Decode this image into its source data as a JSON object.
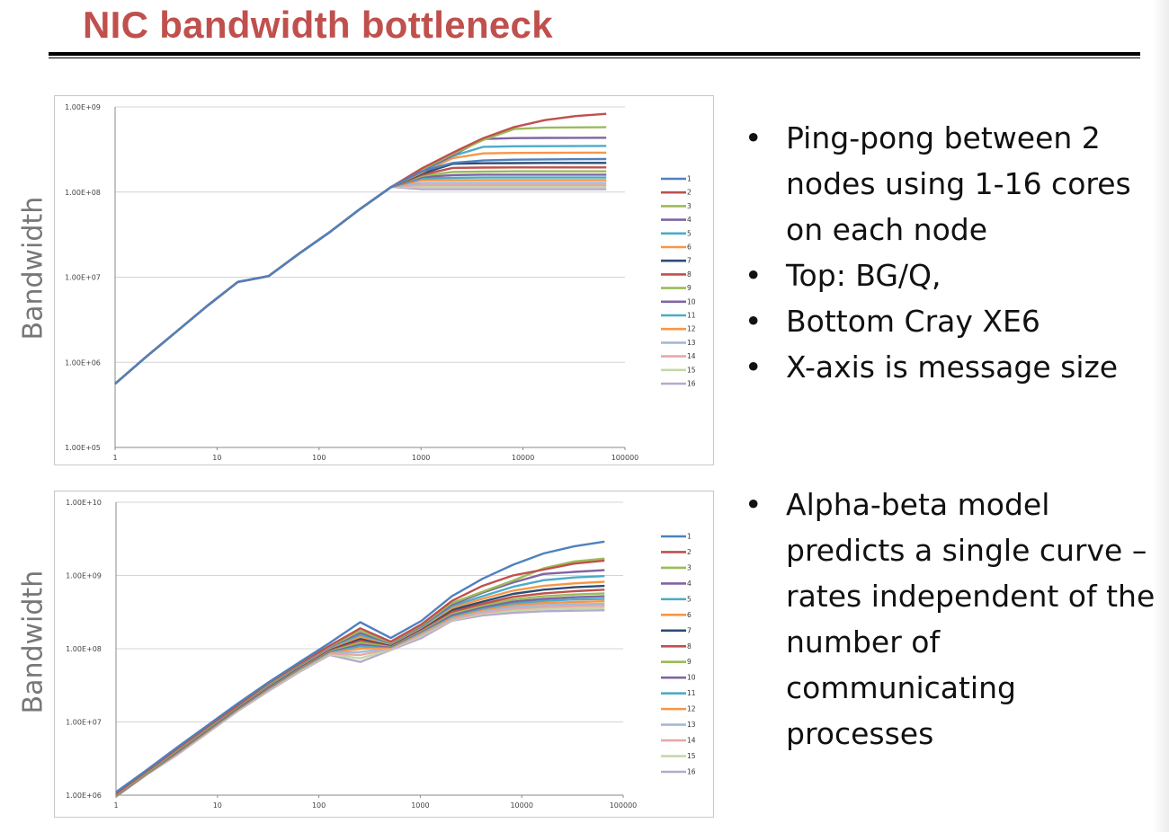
{
  "slide": {
    "title": "NIC bandwidth bottleneck",
    "bullets_top": [
      "Ping-pong between 2 nodes using 1-16 cores on each node",
      "Top: BG/Q,",
      "Bottom Cray XE6",
      "X-axis is message size"
    ],
    "bullets_bottom": [
      "Alpha-beta model predicts a single curve – rates independent of the number of communicating processes"
    ]
  },
  "chart_data": [
    {
      "type": "line",
      "title": "",
      "xlabel": "",
      "ylabel": "Bandwidth",
      "xscale": "log",
      "yscale": "log",
      "xlim": [
        1,
        100000
      ],
      "ylim": [
        100000,
        1000000000
      ],
      "xticks": [
        "1",
        "10",
        "100",
        "1000",
        "10000",
        "100000"
      ],
      "yticks": [
        "1.00E+05",
        "1.00E+06",
        "1.00E+07",
        "1.00E+08",
        "1.00E+09"
      ],
      "grid": true,
      "legend": "right",
      "x": [
        1,
        2,
        4,
        8,
        16,
        32,
        64,
        128,
        256,
        512,
        1024,
        2048,
        4096,
        8192,
        16384,
        32768,
        65536
      ],
      "shared_prefix": [
        560000,
        1150000,
        2300000,
        4600000,
        8800000,
        10300000,
        19000000,
        34000000,
        64000000,
        115000000
      ],
      "series": [
        {
          "name": "1",
          "color": "#4f81bd",
          "tail": [
            175000000,
            220000000,
            235000000,
            240000000,
            242000000,
            243000000,
            244000000
          ]
        },
        {
          "name": "2",
          "color": "#c0504d",
          "tail": [
            190000000,
            290000000,
            430000000,
            580000000,
            700000000,
            780000000,
            830000000
          ]
        },
        {
          "name": "3",
          "color": "#9bbb59",
          "tail": [
            185000000,
            280000000,
            410000000,
            550000000,
            570000000,
            575000000,
            578000000
          ]
        },
        {
          "name": "4",
          "color": "#8064a2",
          "tail": [
            180000000,
            270000000,
            420000000,
            430000000,
            432000000,
            433000000,
            434000000
          ]
        },
        {
          "name": "5",
          "color": "#4bacc6",
          "tail": [
            175000000,
            265000000,
            340000000,
            345000000,
            346000000,
            347000000,
            348000000
          ]
        },
        {
          "name": "6",
          "color": "#f79646",
          "tail": [
            170000000,
            250000000,
            285000000,
            288000000,
            289000000,
            290000000,
            290000000
          ]
        },
        {
          "name": "7",
          "color": "#2c4d75",
          "tail": [
            165000000,
            215000000,
            218000000,
            219000000,
            220000000,
            220000000,
            220000000
          ]
        },
        {
          "name": "8",
          "color": "#c0504d",
          "tail": [
            160000000,
            192000000,
            194000000,
            195000000,
            195000000,
            195000000,
            195000000
          ]
        },
        {
          "name": "9",
          "color": "#9bbb59",
          "tail": [
            155000000,
            172000000,
            174000000,
            175000000,
            175000000,
            175000000,
            175000000
          ]
        },
        {
          "name": "10",
          "color": "#8064a2",
          "tail": [
            150000000,
            158000000,
            160000000,
            160000000,
            160000000,
            160000000,
            160000000
          ]
        },
        {
          "name": "11",
          "color": "#4bacc6",
          "tail": [
            145000000,
            147000000,
            148000000,
            148000000,
            148000000,
            148000000,
            148000000
          ]
        },
        {
          "name": "12",
          "color": "#f79646",
          "tail": [
            138000000,
            138000000,
            138000000,
            138000000,
            138000000,
            138000000,
            138000000
          ]
        },
        {
          "name": "13",
          "color": "#a5b9d6",
          "tail": [
            128000000,
            128000000,
            128000000,
            128000000,
            128000000,
            128000000,
            128000000
          ]
        },
        {
          "name": "14",
          "color": "#e6a9a8",
          "tail": [
            121000000,
            121000000,
            121000000,
            121000000,
            121000000,
            121000000,
            121000000
          ]
        },
        {
          "name": "15",
          "color": "#c5d9a8",
          "tail": [
            115000000,
            115000000,
            115000000,
            115000000,
            115000000,
            115000000,
            115000000
          ]
        },
        {
          "name": "16",
          "color": "#b6a9cc",
          "tail": [
            108000000,
            108000000,
            108000000,
            108000000,
            108000000,
            108000000,
            108000000
          ]
        }
      ]
    },
    {
      "type": "line",
      "title": "",
      "xlabel": "",
      "ylabel": "Bandwidth",
      "xscale": "log",
      "yscale": "log",
      "xlim": [
        1,
        100000
      ],
      "ylim": [
        1000000,
        10000000000
      ],
      "xticks": [
        "1",
        "10",
        "100",
        "1000",
        "10000",
        "100000"
      ],
      "yticks": [
        "1.00E+06",
        "1.00E+07",
        "1.00E+08",
        "1.00E+09",
        "1.00E+10"
      ],
      "grid": true,
      "legend": "right",
      "x": [
        1,
        2,
        4,
        8,
        16,
        32,
        64,
        128,
        256,
        512,
        1024,
        2048,
        4096,
        8192,
        16384,
        32768,
        65536
      ],
      "series": [
        {
          "name": "1",
          "color": "#4f81bd",
          "values": [
            1100000,
            2200000,
            4500000,
            9000000,
            18000000,
            35000000,
            65000000,
            120000000,
            230000000,
            140000000,
            240000000,
            520000000,
            900000000,
            1400000000,
            2000000000,
            2500000000,
            2900000000
          ]
        },
        {
          "name": "2",
          "color": "#c0504d",
          "values": [
            1050000,
            2100000,
            4300000,
            8600000,
            17000000,
            34000000,
            62000000,
            110000000,
            190000000,
            125000000,
            215000000,
            450000000,
            720000000,
            1000000000,
            1200000000,
            1450000000,
            1600000000
          ]
        },
        {
          "name": "3",
          "color": "#9bbb59",
          "values": [
            1030000,
            2050000,
            4200000,
            8400000,
            16800000,
            33000000,
            61000000,
            108000000,
            175000000,
            122000000,
            210000000,
            420000000,
            600000000,
            850000000,
            1250000000,
            1550000000,
            1700000000
          ]
        },
        {
          "name": "4",
          "color": "#8064a2",
          "values": [
            1020000,
            2030000,
            4150000,
            8300000,
            16600000,
            32500000,
            60000000,
            106000000,
            165000000,
            120000000,
            205000000,
            400000000,
            580000000,
            800000000,
            1050000000,
            1120000000,
            1180000000
          ]
        },
        {
          "name": "5",
          "color": "#4bacc6",
          "values": [
            1010000,
            2010000,
            4100000,
            8200000,
            16400000,
            32000000,
            59000000,
            104000000,
            155000000,
            118000000,
            200000000,
            380000000,
            520000000,
            700000000,
            860000000,
            940000000,
            980000000
          ]
        },
        {
          "name": "6",
          "color": "#f79646",
          "values": [
            1000000,
            2000000,
            4050000,
            8100000,
            16200000,
            31500000,
            58000000,
            102000000,
            145000000,
            116000000,
            195000000,
            360000000,
            480000000,
            620000000,
            720000000,
            780000000,
            820000000
          ]
        },
        {
          "name": "7",
          "color": "#2c4d75",
          "values": [
            995000,
            1990000,
            4000000,
            8000000,
            16000000,
            31000000,
            57000000,
            100000000,
            138000000,
            114000000,
            190000000,
            340000000,
            440000000,
            560000000,
            640000000,
            690000000,
            720000000
          ]
        },
        {
          "name": "8",
          "color": "#c0504d",
          "values": [
            990000,
            1980000,
            3950000,
            7900000,
            15800000,
            30500000,
            56000000,
            98000000,
            130000000,
            112000000,
            185000000,
            320000000,
            410000000,
            510000000,
            570000000,
            610000000,
            640000000
          ]
        },
        {
          "name": "9",
          "color": "#9bbb59",
          "values": [
            985000,
            1970000,
            3900000,
            7800000,
            15600000,
            30000000,
            55000000,
            96000000,
            122000000,
            110000000,
            180000000,
            305000000,
            390000000,
            470000000,
            520000000,
            550000000,
            570000000
          ]
        },
        {
          "name": "10",
          "color": "#8064a2",
          "values": [
            980000,
            1960000,
            3850000,
            7700000,
            15400000,
            29500000,
            54000000,
            94000000,
            115000000,
            108000000,
            175000000,
            290000000,
            370000000,
            440000000,
            480000000,
            505000000,
            520000000
          ]
        },
        {
          "name": "11",
          "color": "#4bacc6",
          "values": [
            975000,
            1950000,
            3800000,
            7600000,
            15200000,
            29000000,
            53000000,
            92000000,
            108000000,
            106000000,
            170000000,
            280000000,
            355000000,
            415000000,
            450000000,
            470000000,
            480000000
          ]
        },
        {
          "name": "12",
          "color": "#f79646",
          "values": [
            970000,
            1940000,
            3750000,
            7500000,
            15000000,
            28500000,
            52000000,
            90000000,
            100000000,
            104000000,
            165000000,
            270000000,
            340000000,
            395000000,
            420000000,
            435000000,
            445000000
          ]
        },
        {
          "name": "13",
          "color": "#a5b9d6",
          "values": [
            965000,
            1930000,
            3700000,
            7400000,
            14800000,
            28000000,
            51000000,
            88000000,
            90000000,
            102000000,
            160000000,
            260000000,
            325000000,
            370000000,
            395000000,
            405000000,
            410000000
          ]
        },
        {
          "name": "14",
          "color": "#e6a9a8",
          "values": [
            960000,
            1920000,
            3650000,
            7300000,
            14600000,
            27500000,
            50000000,
            86000000,
            82000000,
            100000000,
            155000000,
            250000000,
            310000000,
            350000000,
            370000000,
            380000000,
            385000000
          ]
        },
        {
          "name": "15",
          "color": "#c5d9a8",
          "values": [
            955000,
            1910000,
            3600000,
            7200000,
            14400000,
            27000000,
            49000000,
            84000000,
            74000000,
            98000000,
            150000000,
            245000000,
            300000000,
            330000000,
            348000000,
            355000000,
            360000000
          ]
        },
        {
          "name": "16",
          "color": "#b6a9cc",
          "values": [
            950000,
            1900000,
            3550000,
            7100000,
            14200000,
            26500000,
            48000000,
            82000000,
            66000000,
            96000000,
            140000000,
            240000000,
            285000000,
            310000000,
            325000000,
            330000000,
            335000000
          ]
        }
      ]
    }
  ]
}
